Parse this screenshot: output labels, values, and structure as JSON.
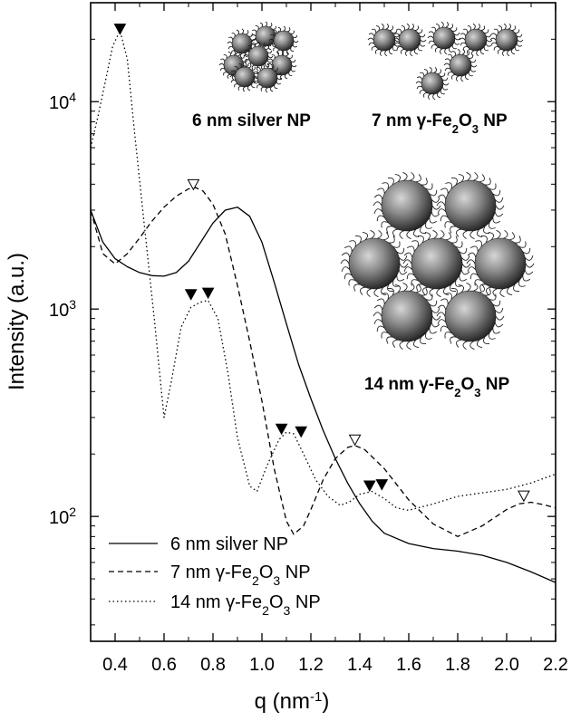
{
  "chart_data": {
    "type": "line",
    "xlabel": "q (nm",
    "xlabel_sup": "-1",
    "xlabel_tail": ")",
    "ylabel": "Intensity (a.u.)",
    "yscale": "log",
    "xlim": [
      0.3,
      2.2
    ],
    "ylim": [
      25,
      30000
    ],
    "x_ticks": [
      "0.4",
      "0.6",
      "0.8",
      "1.0",
      "1.2",
      "1.4",
      "1.6",
      "1.8",
      "2.0",
      "2.2"
    ],
    "y_ticks": [
      {
        "base": "10",
        "exp": "2"
      },
      {
        "base": "10",
        "exp": "3"
      },
      {
        "base": "10",
        "exp": "4"
      }
    ],
    "legend_position": "bottom-left",
    "series": [
      {
        "name": "6 nm silver NP",
        "style": "solid",
        "points": [
          [
            0.3,
            3000
          ],
          [
            0.35,
            2100
          ],
          [
            0.4,
            1750
          ],
          [
            0.45,
            1600
          ],
          [
            0.5,
            1500
          ],
          [
            0.55,
            1450
          ],
          [
            0.6,
            1440
          ],
          [
            0.65,
            1500
          ],
          [
            0.7,
            1700
          ],
          [
            0.75,
            2100
          ],
          [
            0.8,
            2600
          ],
          [
            0.85,
            3000
          ],
          [
            0.9,
            3100
          ],
          [
            0.95,
            2800
          ],
          [
            1.0,
            2100
          ],
          [
            1.05,
            1350
          ],
          [
            1.1,
            850
          ],
          [
            1.15,
            540
          ],
          [
            1.2,
            370
          ],
          [
            1.25,
            260
          ],
          [
            1.3,
            190
          ],
          [
            1.35,
            145
          ],
          [
            1.4,
            115
          ],
          [
            1.45,
            95
          ],
          [
            1.5,
            83
          ],
          [
            1.6,
            74
          ],
          [
            1.7,
            70
          ],
          [
            1.8,
            68
          ],
          [
            1.9,
            65
          ],
          [
            2.0,
            60
          ],
          [
            2.1,
            54
          ],
          [
            2.2,
            48
          ]
        ]
      },
      {
        "name": "7 nm γ-Fe₂O₃ NP",
        "style": "dashed",
        "points": [
          [
            0.3,
            3000
          ],
          [
            0.35,
            1850
          ],
          [
            0.4,
            1650
          ],
          [
            0.45,
            1850
          ],
          [
            0.5,
            2200
          ],
          [
            0.55,
            2650
          ],
          [
            0.6,
            3100
          ],
          [
            0.65,
            3500
          ],
          [
            0.7,
            3800
          ],
          [
            0.73,
            3850
          ],
          [
            0.76,
            3700
          ],
          [
            0.8,
            3200
          ],
          [
            0.85,
            2300
          ],
          [
            0.9,
            1300
          ],
          [
            0.95,
            700
          ],
          [
            1.0,
            360
          ],
          [
            1.05,
            170
          ],
          [
            1.1,
            95
          ],
          [
            1.13,
            82
          ],
          [
            1.17,
            90
          ],
          [
            1.2,
            108
          ],
          [
            1.25,
            150
          ],
          [
            1.3,
            190
          ],
          [
            1.35,
            215
          ],
          [
            1.38,
            220
          ],
          [
            1.42,
            210
          ],
          [
            1.5,
            170
          ],
          [
            1.6,
            120
          ],
          [
            1.7,
            92
          ],
          [
            1.8,
            80
          ],
          [
            1.9,
            90
          ],
          [
            2.0,
            108
          ],
          [
            2.05,
            115
          ],
          [
            2.1,
            117
          ],
          [
            2.15,
            114
          ],
          [
            2.2,
            110
          ]
        ]
      },
      {
        "name": "14 nm γ-Fe₂O₃ NP",
        "style": "dotted",
        "points": [
          [
            0.3,
            6000
          ],
          [
            0.33,
            8500
          ],
          [
            0.36,
            12500
          ],
          [
            0.39,
            18500
          ],
          [
            0.42,
            22000
          ],
          [
            0.45,
            16000
          ],
          [
            0.48,
            7000
          ],
          [
            0.52,
            2500
          ],
          [
            0.56,
            900
          ],
          [
            0.6,
            300
          ],
          [
            0.63,
            450
          ],
          [
            0.67,
            820
          ],
          [
            0.71,
            1020
          ],
          [
            0.75,
            1080
          ],
          [
            0.78,
            1100
          ],
          [
            0.82,
            900
          ],
          [
            0.86,
            500
          ],
          [
            0.9,
            240
          ],
          [
            0.95,
            140
          ],
          [
            0.98,
            132
          ],
          [
            1.02,
            175
          ],
          [
            1.07,
            235
          ],
          [
            1.1,
            255
          ],
          [
            1.13,
            250
          ],
          [
            1.17,
            200
          ],
          [
            1.22,
            150
          ],
          [
            1.27,
            125
          ],
          [
            1.32,
            113
          ],
          [
            1.36,
            118
          ],
          [
            1.4,
            128
          ],
          [
            1.45,
            132
          ],
          [
            1.5,
            122
          ],
          [
            1.55,
            110
          ],
          [
            1.6,
            107
          ],
          [
            1.7,
            115
          ],
          [
            1.8,
            125
          ],
          [
            1.9,
            130
          ],
          [
            2.0,
            135
          ],
          [
            2.1,
            145
          ],
          [
            2.2,
            160
          ]
        ]
      }
    ],
    "peak_markers": [
      {
        "x": 0.42,
        "y": 22500,
        "kind": "filled"
      },
      {
        "x": 0.72,
        "y": 4000,
        "kind": "open"
      },
      {
        "x": 0.71,
        "y": 1180,
        "kind": "filled"
      },
      {
        "x": 0.78,
        "y": 1200,
        "kind": "filled"
      },
      {
        "x": 1.08,
        "y": 265,
        "kind": "filled"
      },
      {
        "x": 1.16,
        "y": 257,
        "kind": "filled"
      },
      {
        "x": 1.38,
        "y": 235,
        "kind": "open"
      },
      {
        "x": 1.44,
        "y": 141,
        "kind": "filled"
      },
      {
        "x": 1.49,
        "y": 143,
        "kind": "filled"
      },
      {
        "x": 2.07,
        "y": 126,
        "kind": "open"
      }
    ],
    "annotations": [
      {
        "id": "silver",
        "text": "6 nm silver NP"
      },
      {
        "id": "fe7",
        "text_prefix": "7 nm γ-Fe",
        "sub1": "2",
        "mid": "O",
        "sub2": "3",
        "suffix": " NP"
      },
      {
        "id": "fe14",
        "text_prefix": "14 nm γ-Fe",
        "sub1": "2",
        "mid": "O",
        "sub2": "3",
        "suffix": " NP"
      }
    ],
    "legend": [
      {
        "style": "solid",
        "prefix": "6 nm silver NP"
      },
      {
        "style": "dashed",
        "prefix": "7 nm γ-Fe",
        "sub1": "2",
        "mid": "O",
        "sub2": "3",
        "suffix": " NP"
      },
      {
        "style": "dotted",
        "prefix": "14 nm γ-Fe",
        "sub1": "2",
        "mid": "O",
        "sub2": "3",
        "suffix": " NP"
      }
    ]
  }
}
